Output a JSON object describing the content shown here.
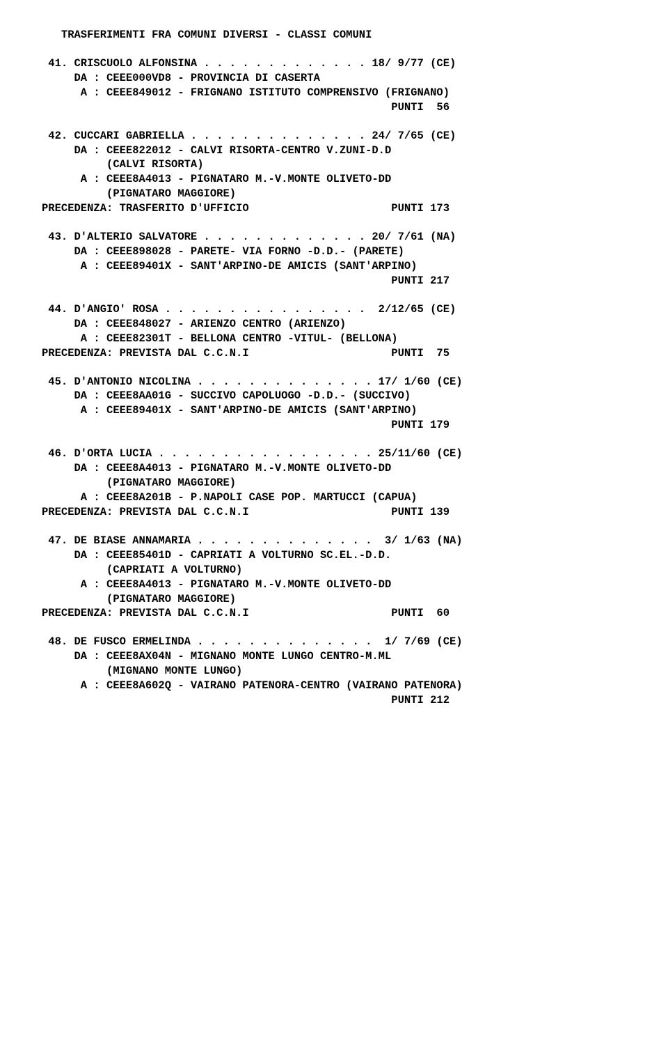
{
  "header": "   TRASFERIMENTI FRA COMUNI DIVERSI - CLASSI COMUNI",
  "entries": [
    {
      "num": " 41. CRISCUOLO ALFONSINA . . . . . . . . . . . . . 18/ 9/77 (CE)",
      "da": "     DA : CEEE000VD8 - PROVINCIA DI CASERTA",
      "a": "      A : CEEE849012 - FRIGNANO ISTITUTO COMPRENSIVO (FRIGNANO)",
      "punti": "                                                      PUNTI  56"
    },
    {
      "num": " 42. CUCCARI GABRIELLA . . . . . . . . . . . . . . 24/ 7/65 (CE)",
      "da": "     DA : CEEE822012 - CALVI RISORTA-CENTRO V.ZUNI-D.D",
      "da2": "          (CALVI RISORTA)",
      "a": "      A : CEEE8A4013 - PIGNATARO M.-V.MONTE OLIVETO-DD",
      "a2": "          (PIGNATARO MAGGIORE)",
      "prec": "PRECEDENZA: TRASFERITO D'UFFICIO                      PUNTI 173"
    },
    {
      "num": " 43. D'ALTERIO SALVATORE . . . . . . . . . . . . . 20/ 7/61 (NA)",
      "da": "     DA : CEEE898028 - PARETE- VIA FORNO -D.D.- (PARETE)",
      "a": "      A : CEEE89401X - SANT'ARPINO-DE AMICIS (SANT'ARPINO)",
      "punti": "                                                      PUNTI 217"
    },
    {
      "num": " 44. D'ANGIO' ROSA . . . . . . . . . . . . . . . .  2/12/65 (CE)",
      "da": "     DA : CEEE848027 - ARIENZO CENTRO (ARIENZO)",
      "a": "      A : CEEE82301T - BELLONA CENTRO -VITUL- (BELLONA)",
      "prec": "PRECEDENZA: PREVISTA DAL C.C.N.I                      PUNTI  75"
    },
    {
      "num": " 45. D'ANTONIO NICOLINA . . . . . . . . . . . . . . 17/ 1/60 (CE)",
      "da": "     DA : CEEE8AA01G - SUCCIVO CAPOLUOGO -D.D.- (SUCCIVO)",
      "a": "      A : CEEE89401X - SANT'ARPINO-DE AMICIS (SANT'ARPINO)",
      "punti": "                                                      PUNTI 179"
    },
    {
      "num": " 46. D'ORTA LUCIA . . . . . . . . . . . . . . . . . 25/11/60 (CE)",
      "da": "     DA : CEEE8A4013 - PIGNATARO M.-V.MONTE OLIVETO-DD",
      "da2": "          (PIGNATARO MAGGIORE)",
      "a": "      A : CEEE8A201B - P.NAPOLI CASE POP. MARTUCCI (CAPUA)",
      "prec": "PRECEDENZA: PREVISTA DAL C.C.N.I                      PUNTI 139"
    },
    {
      "num": " 47. DE BIASE ANNAMARIA . . . . . . . . . . . . . .  3/ 1/63 (NA)",
      "da": "     DA : CEEE85401D - CAPRIATI A VOLTURNO SC.EL.-D.D.",
      "da2": "          (CAPRIATI A VOLTURNO)",
      "a": "      A : CEEE8A4013 - PIGNATARO M.-V.MONTE OLIVETO-DD",
      "a2": "          (PIGNATARO MAGGIORE)",
      "prec": "PRECEDENZA: PREVISTA DAL C.C.N.I                      PUNTI  60"
    },
    {
      "num": " 48. DE FUSCO ERMELINDA . . . . . . . . . . . . . .  1/ 7/69 (CE)",
      "da": "     DA : CEEE8AX04N - MIGNANO MONTE LUNGO CENTRO-M.ML",
      "da2": "          (MIGNANO MONTE LUNGO)",
      "a": "      A : CEEE8A602Q - VAIRANO PATENORA-CENTRO (VAIRANO PATENORA)",
      "punti": "                                                      PUNTI 212"
    }
  ]
}
